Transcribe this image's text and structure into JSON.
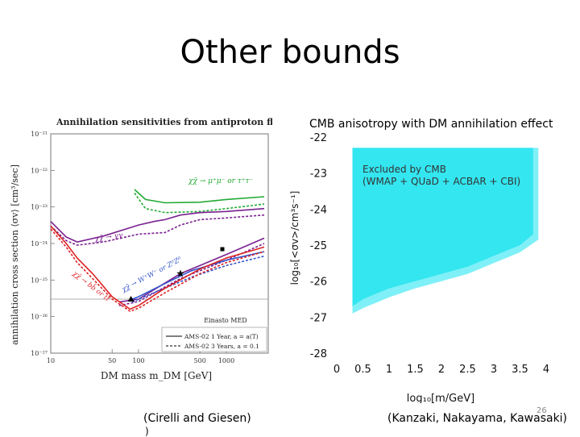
{
  "slide": {
    "title": "Other bounds",
    "left_caption": "(Cirelli  and Giesen)",
    "left_caption_tail": ")",
    "right_caption": "(Kanzaki, Nakayama, Kawasaki)",
    "page_number": "26"
  },
  "chart_data": [
    {
      "type": "line",
      "title": "Annihilation sensitivities from antiproton flux",
      "xlabel": "DM mass m_DM [GeV]",
      "ylabel": "annihilation cross section ⟨σv⟩ [cm³/sec]",
      "xscale": "log",
      "yscale": "log",
      "xlim": [
        10,
        3000
      ],
      "ylim": [
        1e-27,
        1e-21
      ],
      "xticks": [
        "10",
        "50",
        "100",
        "500",
        "1000"
      ],
      "yticks": [
        "10⁻²⁷",
        "10⁻²⁶",
        "10⁻²⁵",
        "10⁻²⁴",
        "10⁻²³",
        "10⁻²²",
        "10⁻²¹"
      ],
      "annotation_label": "Einasto MED",
      "channel_labels": [
        {
          "text": "χχ̄ → μ⁺μ⁻ or τ⁺τ⁻",
          "color": "#22aa33"
        },
        {
          "text": "χχ̄ → γγ",
          "color": "#7a2090"
        },
        {
          "text": "χχ̄ → W⁺W⁻ or Z⁰Z⁰",
          "color": "#3355cc"
        },
        {
          "text": "χχ̄ → bb̄ or tt̄",
          "color": "#dd2222"
        }
      ],
      "legend": [
        {
          "text": "AMS-02 1 Year, a = a(T)",
          "style": "solid"
        },
        {
          "text": "AMS-02 3 Years, a = 0.1",
          "style": "dashed"
        }
      ],
      "reference_line_y": 3e-26,
      "series": [
        {
          "color": "#22aa33",
          "style": "solid",
          "points": [
            [
              90,
              3e-23
            ],
            [
              120,
              1.6e-23
            ],
            [
              200,
              1.3e-23
            ],
            [
              500,
              1.35e-23
            ],
            [
              1000,
              1.6e-23
            ],
            [
              2700,
              1.9e-23
            ]
          ]
        },
        {
          "color": "#22aa33",
          "style": "dashed",
          "points": [
            [
              90,
              2.4e-23
            ],
            [
              120,
              9e-24
            ],
            [
              200,
              7e-24
            ],
            [
              500,
              7.5e-24
            ],
            [
              1000,
              9e-24
            ],
            [
              2700,
              1.2e-23
            ]
          ]
        },
        {
          "color": "#7a2090",
          "style": "solid",
          "points": [
            [
              10,
              4e-24
            ],
            [
              15,
              1.5e-24
            ],
            [
              20,
              1.1e-24
            ],
            [
              40,
              1.6e-24
            ],
            [
              100,
              3.2e-24
            ],
            [
              150,
              4e-24
            ],
            [
              200,
              4.5e-24
            ],
            [
              300,
              6e-24
            ],
            [
              500,
              7e-24
            ],
            [
              1000,
              7.5e-24
            ],
            [
              2700,
              9e-24
            ]
          ]
        },
        {
          "color": "#7a2090",
          "style": "dashed",
          "points": [
            [
              10,
              3e-24
            ],
            [
              15,
              1.2e-24
            ],
            [
              20,
              9e-25
            ],
            [
              40,
              1.1e-24
            ],
            [
              100,
              1.8e-24
            ],
            [
              200,
              2e-24
            ],
            [
              300,
              3.2e-24
            ],
            [
              500,
              4.5e-24
            ],
            [
              1000,
              5e-24
            ],
            [
              2700,
              6e-24
            ]
          ]
        },
        {
          "color": "#7a2090",
          "style": "solid",
          "points": [
            [
              60,
              2.5e-26
            ],
            [
              100,
              3e-26
            ],
            [
              300,
              1.5e-25
            ],
            [
              1000,
              5e-25
            ],
            [
              2700,
              1.4e-24
            ]
          ]
        },
        {
          "color": "#7a2090",
          "style": "dashed",
          "points": [
            [
              60,
              2e-26
            ],
            [
              100,
              2.6e-26
            ],
            [
              300,
              1.1e-25
            ],
            [
              1000,
              3.5e-25
            ],
            [
              2700,
              1e-24
            ]
          ]
        },
        {
          "color": "#3355cc",
          "style": "solid",
          "points": [
            [
              85,
              3e-26
            ],
            [
              100,
              3.5e-26
            ],
            [
              200,
              8e-26
            ],
            [
              400,
              1.8e-25
            ],
            [
              1000,
              3.5e-25
            ],
            [
              2700,
              6e-25
            ]
          ]
        },
        {
          "color": "#3355cc",
          "style": "dashed",
          "points": [
            [
              85,
              2.5e-26
            ],
            [
              100,
              3e-26
            ],
            [
              200,
              6e-26
            ],
            [
              400,
              1.2e-25
            ],
            [
              1000,
              2.5e-25
            ],
            [
              2700,
              4.5e-25
            ]
          ]
        },
        {
          "color": "#dd2222",
          "style": "solid",
          "points": [
            [
              10,
              3e-24
            ],
            [
              15,
              1e-24
            ],
            [
              20,
              4e-25
            ],
            [
              30,
              1.5e-25
            ],
            [
              50,
              3.5e-26
            ],
            [
              80,
              1.6e-26
            ],
            [
              100,
              2e-26
            ],
            [
              200,
              6e-26
            ],
            [
              500,
              2e-25
            ],
            [
              1000,
              4e-25
            ],
            [
              2700,
              8e-25
            ]
          ]
        },
        {
          "color": "#dd2222",
          "style": "dashed",
          "points": [
            [
              10,
              2.5e-24
            ],
            [
              15,
              8e-25
            ],
            [
              20,
              3e-25
            ],
            [
              30,
              1.1e-25
            ],
            [
              50,
              3e-26
            ],
            [
              80,
              1.4e-26
            ],
            [
              100,
              1.7e-26
            ],
            [
              200,
              4.5e-26
            ],
            [
              500,
              1.5e-25
            ],
            [
              1000,
              3e-25
            ],
            [
              2700,
              6e-25
            ]
          ]
        }
      ],
      "markers": [
        {
          "symbol": "triangle",
          "x": 82,
          "y": 3e-26
        },
        {
          "symbol": "star",
          "x": 300,
          "y": 1.5e-25
        },
        {
          "symbol": "square",
          "x": 900,
          "y": 7e-25
        }
      ]
    },
    {
      "type": "area",
      "title": "CMB anisotropy with DM annihilation effect",
      "xlabel": "log₁₀[m/GeV]",
      "ylabel": "log₁₀[<σv>/cm³s⁻¹]",
      "xlim": [
        0,
        4
      ],
      "ylim": [
        -28,
        -22
      ],
      "xticks": [
        "0",
        "0.5",
        "1",
        "1.5",
        "2",
        "2.5",
        "3",
        "3.5",
        "4"
      ],
      "yticks": [
        "-22",
        "-23",
        "-24",
        "-25",
        "-26",
        "-27",
        "-28"
      ],
      "region_label_line1": "Excluded by CMB",
      "region_label_line2": "(WMAP + QUaD + ACBAR + CBI)",
      "fill_color": "#33e6f0",
      "outer_edge_color": "#7ff0f7",
      "excluded_boundary": [
        [
          0.3,
          -26.7
        ],
        [
          0.5,
          -26.5
        ],
        [
          1.0,
          -26.2
        ],
        [
          1.5,
          -26.0
        ],
        [
          2.0,
          -25.8
        ],
        [
          2.5,
          -25.6
        ],
        [
          3.0,
          -25.3
        ],
        [
          3.5,
          -25.0
        ],
        [
          3.75,
          -24.7
        ],
        [
          3.75,
          -22.3
        ],
        [
          0.3,
          -22.3
        ]
      ],
      "outer_boundary": [
        [
          0.3,
          -26.9
        ],
        [
          0.5,
          -26.75
        ],
        [
          1.0,
          -26.45
        ],
        [
          1.5,
          -26.2
        ],
        [
          2.0,
          -26.0
        ],
        [
          2.5,
          -25.8
        ],
        [
          3.0,
          -25.5
        ],
        [
          3.5,
          -25.2
        ],
        [
          3.85,
          -24.85
        ],
        [
          3.85,
          -22.3
        ]
      ]
    }
  ]
}
